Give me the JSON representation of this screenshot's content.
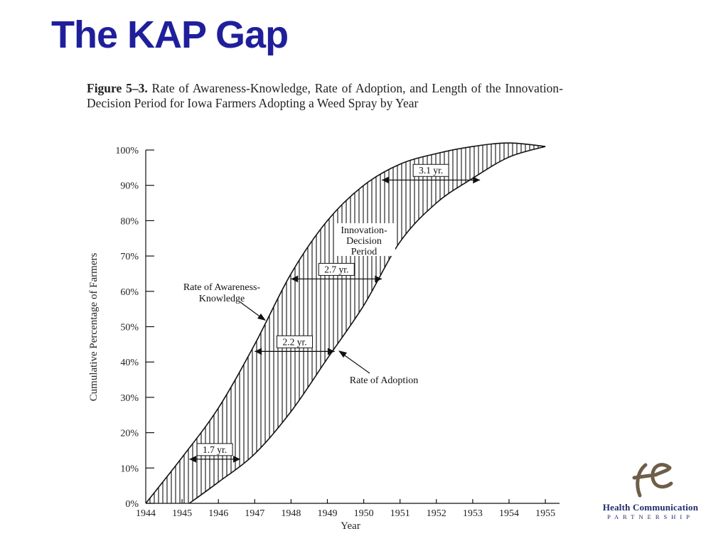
{
  "slide": {
    "title": "The KAP Gap"
  },
  "figure": {
    "label": "Figure 5–3.",
    "caption": "Rate of Awareness-Knowledge, Rate of Adoption, and Length of the Innovation-Decision Period for Iowa Farmers Adopting a Weed Spray by Year"
  },
  "logo": {
    "name": "Health Communication",
    "sub": "PARTNERSHIP",
    "mark": "hc"
  },
  "chart_data": {
    "type": "area",
    "xlabel": "Year",
    "ylabel": "Cumulative Percentage of Farmers",
    "xlim": [
      1944,
      1955
    ],
    "ylim": [
      0,
      100
    ],
    "x_ticks": [
      "1944",
      "1945",
      "1946",
      "1947",
      "1948",
      "1949",
      "1950",
      "1951",
      "1952",
      "1953",
      "1954",
      "1955"
    ],
    "y_ticks": [
      "0%",
      "10%",
      "20%",
      "30%",
      "40%",
      "50%",
      "60%",
      "70%",
      "80%",
      "90%",
      "100%"
    ],
    "grid": false,
    "series": [
      {
        "name": "Rate of Awareness-Knowledge",
        "x": [
          1944,
          1945,
          1946,
          1947,
          1948,
          1949,
          1950,
          1951,
          1952,
          1953,
          1954,
          1955
        ],
        "y": [
          0,
          13,
          27,
          45,
          65,
          80,
          90,
          96,
          99,
          101,
          102,
          101
        ]
      },
      {
        "name": "Rate of Adoption",
        "x": [
          1945.2,
          1946,
          1947,
          1948,
          1949,
          1950,
          1951,
          1952,
          1953,
          1954,
          1955
        ],
        "y": [
          0,
          6,
          14,
          26,
          41,
          56,
          74,
          85,
          92,
          98,
          101
        ]
      }
    ],
    "annotations": [
      {
        "text": "1.7 yr.",
        "x_from": 1945.2,
        "x_to": 1946.6,
        "y": 12.5
      },
      {
        "text": "2.2 yr.",
        "x_from": 1947.0,
        "x_to": 1949.2,
        "y": 43
      },
      {
        "text": "2.7 yr.",
        "x_from": 1948.0,
        "x_to": 1950.5,
        "y": 63.5
      },
      {
        "text": "3.1 yr.",
        "x_from": 1950.5,
        "x_to": 1953.2,
        "y": 91.5
      },
      {
        "text": "Innovation-\nDecision\nPeriod"
      },
      {
        "text": "Rate of Awareness-\nKnowledge"
      },
      {
        "text": "Rate of Adoption"
      }
    ]
  }
}
